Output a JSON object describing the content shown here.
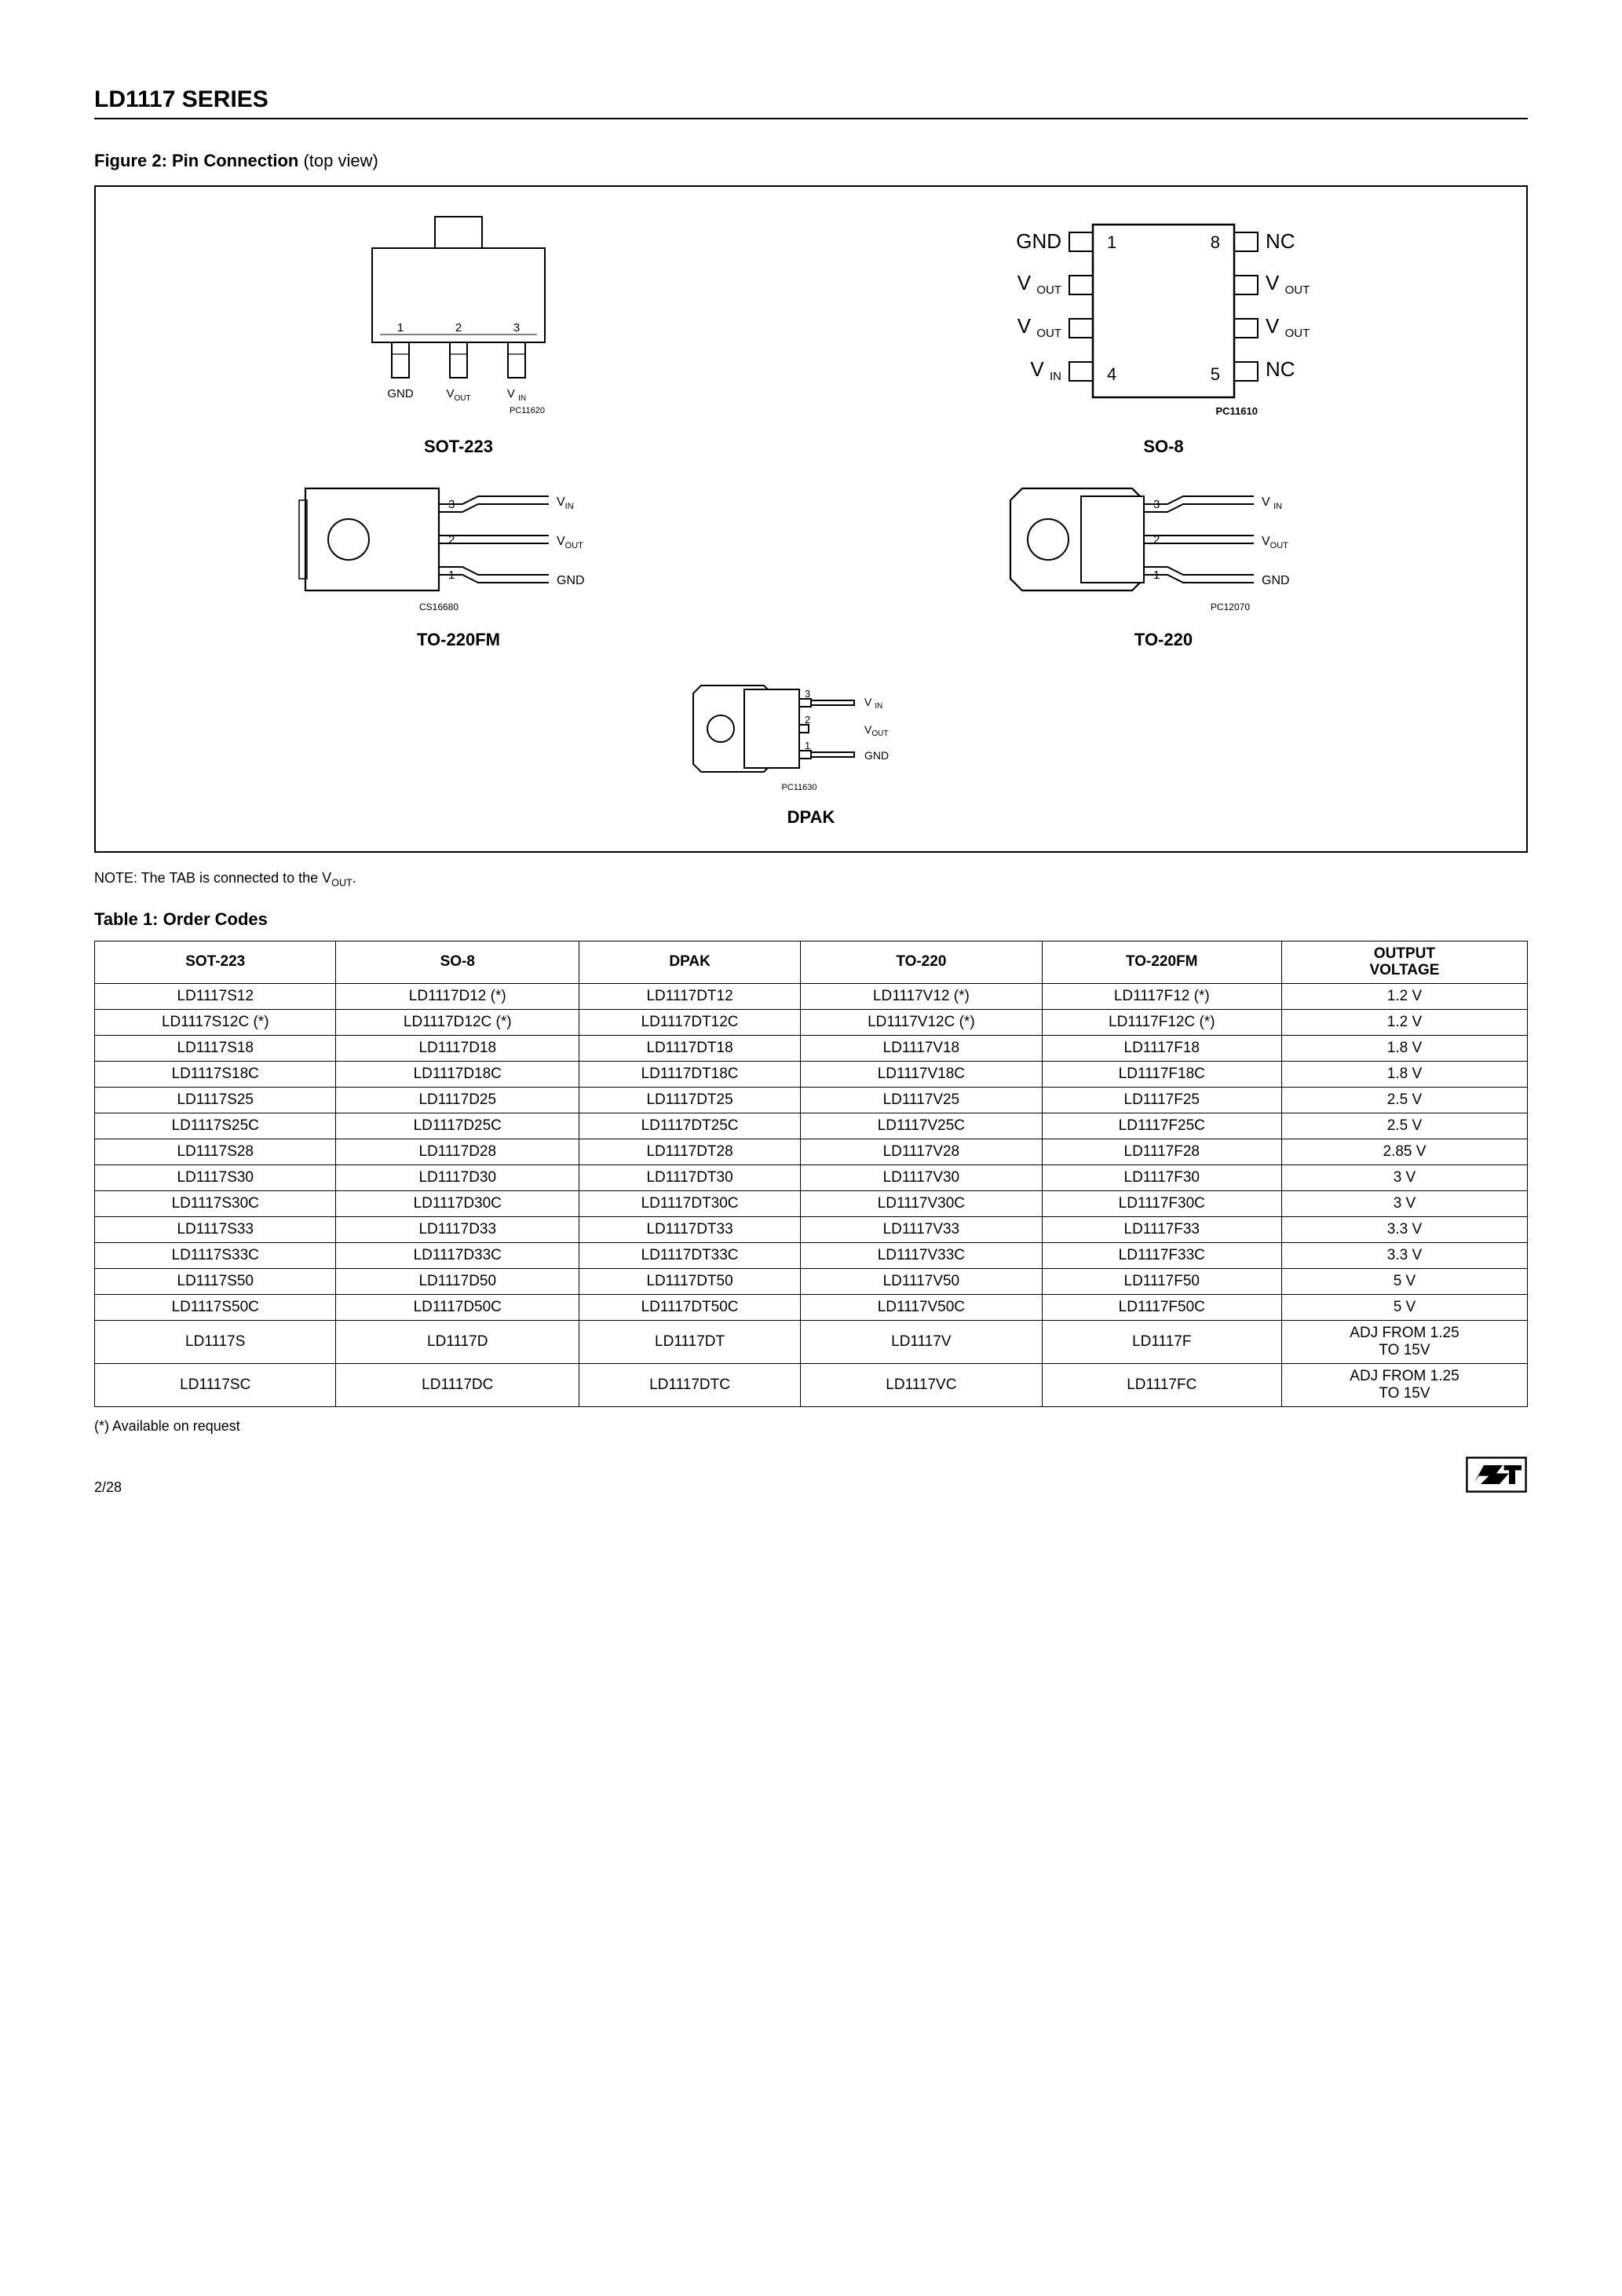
{
  "series_title": "LD1117 SERIES",
  "figure": {
    "caption_bold": "Figure 2: Pin Connection",
    "caption_rest": " (top view)",
    "packages": {
      "sot223": {
        "label": "SOT-223",
        "pins": [
          "1",
          "2",
          "3"
        ],
        "pin_labels": [
          "GND",
          "V",
          "V"
        ],
        "pin_sub": [
          "",
          "OUT",
          "IN"
        ],
        "ref": "PC11620"
      },
      "so8": {
        "label": "SO-8",
        "left": [
          {
            "txt": "GND",
            "sub": ""
          },
          {
            "txt": "V",
            "sub": "OUT"
          },
          {
            "txt": "V",
            "sub": "OUT"
          },
          {
            "txt": "V",
            "sub": "IN"
          }
        ],
        "right": [
          {
            "txt": "NC",
            "sub": ""
          },
          {
            "txt": "V",
            "sub": "OUT"
          },
          {
            "txt": "V",
            "sub": "OUT"
          },
          {
            "txt": "NC",
            "sub": ""
          }
        ],
        "corners": [
          "1",
          "8",
          "4",
          "5"
        ],
        "ref": "PC11610"
      },
      "to220fm": {
        "label": "TO-220FM",
        "pins": [
          "3",
          "2",
          "1"
        ],
        "pin_labels": [
          {
            "txt": "V",
            "sub": "IN"
          },
          {
            "txt": "V",
            "sub": "OUT"
          },
          {
            "txt": "GND",
            "sub": ""
          }
        ],
        "ref": "CS16680"
      },
      "to220": {
        "label": "TO-220",
        "pins": [
          "3",
          "2",
          "1"
        ],
        "pin_labels": [
          {
            "txt": "V",
            "sub": "IN"
          },
          {
            "txt": "V",
            "sub": "OUT"
          },
          {
            "txt": "GND",
            "sub": ""
          }
        ],
        "ref": "PC12070"
      },
      "dpak": {
        "label": "DPAK",
        "pins": [
          "3",
          "2",
          "1"
        ],
        "pin_labels": [
          {
            "txt": "V",
            "sub": "IN"
          },
          {
            "txt": "V",
            "sub": "OUT"
          },
          {
            "txt": "GND",
            "sub": ""
          }
        ],
        "ref": "PC11630"
      }
    }
  },
  "note_prefix": "NOTE: The TAB is connected to the V",
  "note_sub": "OUT",
  "note_suffix": ".",
  "table": {
    "caption": "Table 1: Order Codes",
    "headers": [
      "SOT-223",
      "SO-8",
      "DPAK",
      "TO-220",
      "TO-220FM",
      "OUTPUT\nVOLTAGE"
    ],
    "rows": [
      [
        "LD1117S12",
        "LD1117D12 (*)",
        "LD1117DT12",
        "LD1117V12 (*)",
        "LD1117F12 (*)",
        "1.2 V"
      ],
      [
        "LD1117S12C (*)",
        "LD1117D12C (*)",
        "LD1117DT12C",
        "LD1117V12C (*)",
        "LD1117F12C (*)",
        "1.2 V"
      ],
      [
        "LD1117S18",
        "LD1117D18",
        "LD1117DT18",
        "LD1117V18",
        "LD1117F18",
        "1.8 V"
      ],
      [
        "LD1117S18C",
        "LD1117D18C",
        "LD1117DT18C",
        "LD1117V18C",
        "LD1117F18C",
        "1.8 V"
      ],
      [
        "LD1117S25",
        "LD1117D25",
        "LD1117DT25",
        "LD1117V25",
        "LD1117F25",
        "2.5 V"
      ],
      [
        "LD1117S25C",
        "LD1117D25C",
        "LD1117DT25C",
        "LD1117V25C",
        "LD1117F25C",
        "2.5 V"
      ],
      [
        "LD1117S28",
        "LD1117D28",
        "LD1117DT28",
        "LD1117V28",
        "LD1117F28",
        "2.85 V"
      ],
      [
        "LD1117S30",
        "LD1117D30",
        "LD1117DT30",
        "LD1117V30",
        "LD1117F30",
        "3 V"
      ],
      [
        "LD1117S30C",
        "LD1117D30C",
        "LD1117DT30C",
        "LD1117V30C",
        "LD1117F30C",
        "3 V"
      ],
      [
        "LD1117S33",
        "LD1117D33",
        "LD1117DT33",
        "LD1117V33",
        "LD1117F33",
        "3.3 V"
      ],
      [
        "LD1117S33C",
        "LD1117D33C",
        "LD1117DT33C",
        "LD1117V33C",
        "LD1117F33C",
        "3.3 V"
      ],
      [
        "LD1117S50",
        "LD1117D50",
        "LD1117DT50",
        "LD1117V50",
        "LD1117F50",
        "5 V"
      ],
      [
        "LD1117S50C",
        "LD1117D50C",
        "LD1117DT50C",
        "LD1117V50C",
        "LD1117F50C",
        "5 V"
      ],
      [
        "LD1117S",
        "LD1117D",
        "LD1117DT",
        "LD1117V",
        "LD1117F",
        "ADJ FROM 1.25 TO 15V"
      ],
      [
        "LD1117SC",
        "LD1117DC",
        "LD1117DTC",
        "LD1117VC",
        "LD1117FC",
        "ADJ FROM 1.25 TO 15V"
      ]
    ]
  },
  "footnote": "(*) Available on request",
  "page": "2/28"
}
